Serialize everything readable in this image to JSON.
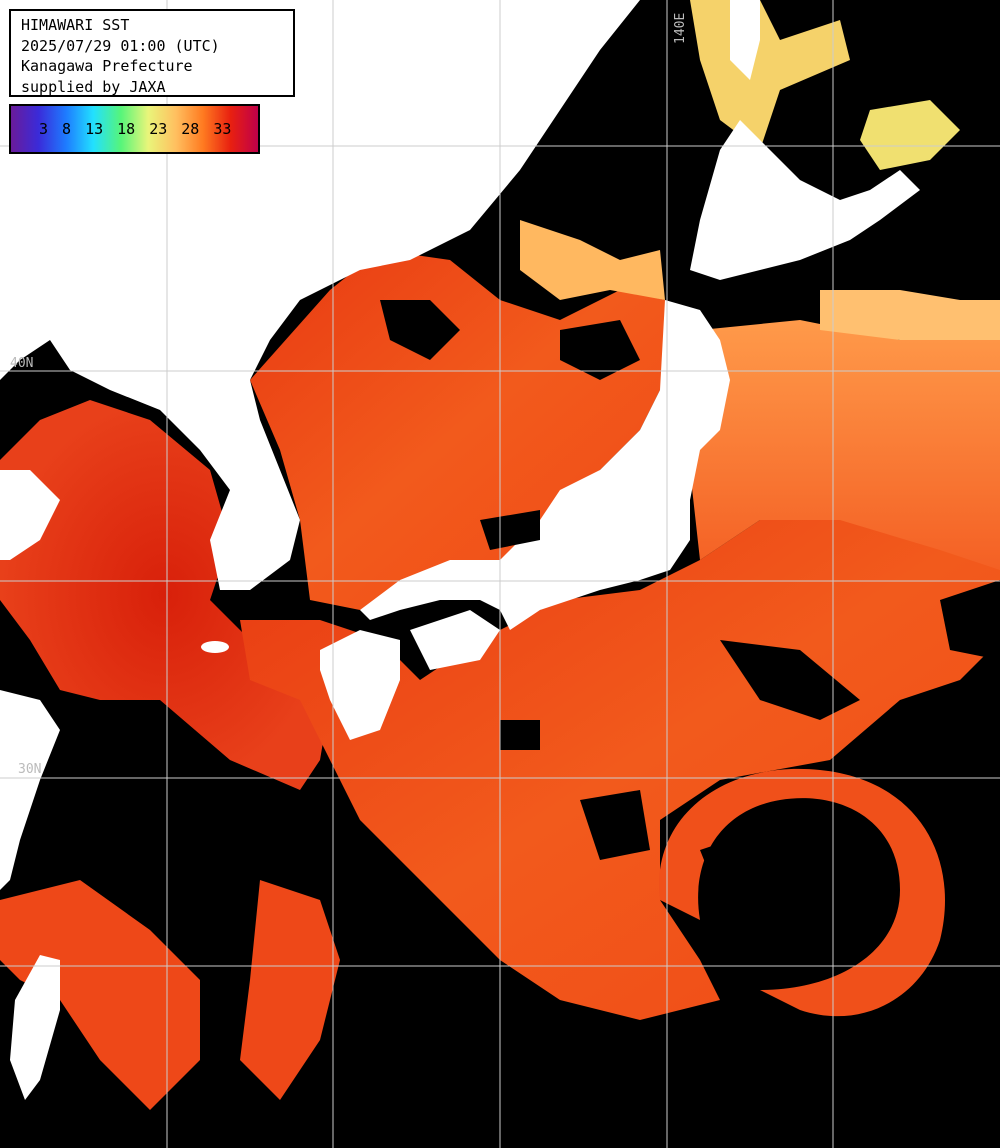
{
  "title": {
    "line1": "HIMAWARI SST",
    "line2": "2025/07/29 01:00 (UTC)",
    "line3": "Kanagawa Prefecture",
    "line4": "supplied by JAXA"
  },
  "legend": {
    "ticks": [
      "3",
      "8",
      "13",
      "18",
      "23",
      "28",
      "33"
    ],
    "gradient_colors": [
      "#6a1b9a",
      "#3a2bd9",
      "#1e7bff",
      "#22e0ff",
      "#56f57a",
      "#e9f57a",
      "#ffc060",
      "#ff7a20",
      "#e82010",
      "#c0004a"
    ]
  },
  "grid_labels": {
    "lon_140": "140E",
    "lat_40": "40N",
    "lat_30": "30N"
  },
  "colors": {
    "land": "#ffffff",
    "cloud": "#000000",
    "sea_warm": "#f4501a",
    "sea_hot": "#dd2a0c",
    "sea_cool": "#ffb060",
    "grid": "#cccccc"
  }
}
